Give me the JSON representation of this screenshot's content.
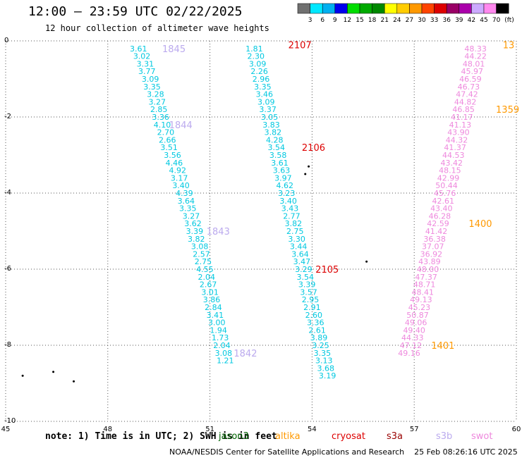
{
  "title": "12:00 — 23:59 UTC 02/22/2025",
  "subtitle": "12 hour collection of altimeter wave heights",
  "note": "note: 1) Time is in UTC; 2) SWH is in feet",
  "credit": "NOAA/NESDIS Center for Satellite Applications and Research    25 Feb 08:26:16 UTC 2025",
  "legend": [
    {
      "label": "jason3",
      "color": "#006400"
    },
    {
      "label": "altika",
      "color": "#ff9900"
    },
    {
      "label": "cryosat",
      "color": "#dd0000"
    },
    {
      "label": "s3a",
      "color": "#990000"
    },
    {
      "label": "s3b",
      "color": "#bbaaee"
    },
    {
      "label": "swot",
      "color": "#ee88dd"
    }
  ],
  "colorbar": {
    "unit": "(ft)",
    "labels": [
      "3",
      "6",
      "9",
      "12",
      "15",
      "18",
      "21",
      "24",
      "27",
      "30",
      "33",
      "36",
      "39",
      "42",
      "45",
      "70"
    ],
    "colors": [
      "#707070",
      "#00e8ff",
      "#00b0f0",
      "#0000ee",
      "#00dd00",
      "#00aa00",
      "#008800",
      "#ffff00",
      "#ffcc00",
      "#ff9900",
      "#ff4400",
      "#dd0000",
      "#990066",
      "#aa00aa",
      "#ccaaff",
      "#ff88ee",
      "#000000"
    ]
  },
  "chart_data": {
    "type": "scatter",
    "xlim": [
      45,
      60
    ],
    "ylim": [
      -10,
      0
    ],
    "x_ticks": [
      45,
      48,
      51,
      54,
      57,
      60
    ],
    "y_ticks": [
      0,
      -2,
      -4,
      -6,
      -8,
      -10
    ],
    "grid": true,
    "series": [
      {
        "name": "",
        "color": "#00c8e0",
        "points": [
          [
            48.9,
            -0.2,
            "3.61"
          ],
          [
            49.0,
            -0.4,
            "3.02"
          ],
          [
            49.1,
            -0.6,
            "3.31"
          ],
          [
            49.15,
            -0.8,
            "3.77"
          ],
          [
            49.25,
            -1.0,
            "3.09"
          ],
          [
            49.3,
            -1.2,
            "3.35"
          ],
          [
            49.4,
            -1.4,
            "3.28"
          ],
          [
            49.45,
            -1.6,
            "3.27"
          ],
          [
            49.5,
            -1.8,
            "2.85"
          ],
          [
            49.55,
            -2.0,
            "3.36"
          ],
          [
            49.6,
            -2.2,
            "4.10"
          ],
          [
            49.7,
            -2.4,
            "2.70"
          ],
          [
            49.75,
            -2.6,
            "2.66"
          ],
          [
            49.8,
            -2.8,
            "3.51"
          ],
          [
            49.9,
            -3.0,
            "3.56"
          ],
          [
            49.95,
            -3.2,
            "4.46"
          ],
          [
            50.05,
            -3.4,
            "4.92"
          ],
          [
            50.1,
            -3.6,
            "3.17"
          ],
          [
            50.15,
            -3.8,
            "3.40"
          ],
          [
            50.25,
            -4.0,
            "4.39"
          ],
          [
            50.3,
            -4.2,
            "3.64"
          ],
          [
            50.35,
            -4.4,
            "3.35"
          ],
          [
            50.45,
            -4.6,
            "3.27"
          ],
          [
            50.5,
            -4.8,
            "3.62"
          ],
          [
            50.55,
            -5.0,
            "3.39"
          ],
          [
            50.6,
            -5.2,
            "3.82"
          ],
          [
            50.7,
            -5.4,
            "3.08"
          ],
          [
            50.75,
            -5.6,
            "2.57"
          ],
          [
            50.8,
            -5.8,
            "2.75"
          ],
          [
            50.85,
            -6.0,
            "4.55"
          ],
          [
            50.9,
            -6.2,
            "2.04"
          ],
          [
            50.95,
            -6.4,
            "2.67"
          ],
          [
            51.0,
            -6.6,
            "3.01"
          ],
          [
            51.05,
            -6.8,
            "3.86"
          ],
          [
            51.1,
            -7.0,
            "2.84"
          ],
          [
            51.15,
            -7.2,
            "3.41"
          ],
          [
            51.2,
            -7.4,
            "3.00"
          ],
          [
            51.25,
            -7.6,
            "1.94"
          ],
          [
            51.3,
            -7.8,
            "1.73"
          ],
          [
            51.35,
            -8.0,
            "2.04"
          ],
          [
            51.4,
            -8.2,
            "3.08"
          ],
          [
            51.45,
            -8.4,
            "1.21"
          ]
        ]
      },
      {
        "name": "",
        "color": "#00c8e0",
        "points": [
          [
            52.3,
            -0.2,
            "1.81"
          ],
          [
            52.35,
            -0.4,
            "2.30"
          ],
          [
            52.4,
            -0.6,
            "3.09"
          ],
          [
            52.45,
            -0.8,
            "2.26"
          ],
          [
            52.5,
            -1.0,
            "2.96"
          ],
          [
            52.55,
            -1.2,
            "3.35"
          ],
          [
            52.6,
            -1.4,
            "3.46"
          ],
          [
            52.65,
            -1.6,
            "3.09"
          ],
          [
            52.7,
            -1.8,
            "3.37"
          ],
          [
            52.75,
            -2.0,
            "3.05"
          ],
          [
            52.8,
            -2.2,
            "3.83"
          ],
          [
            52.85,
            -2.4,
            "3.82"
          ],
          [
            52.9,
            -2.6,
            "4.28"
          ],
          [
            52.95,
            -2.8,
            "3.54"
          ],
          [
            53.0,
            -3.0,
            "3.58"
          ],
          [
            53.05,
            -3.2,
            "3.61"
          ],
          [
            53.1,
            -3.4,
            "3.63"
          ],
          [
            53.15,
            -3.6,
            "3.97"
          ],
          [
            53.2,
            -3.8,
            "4.62"
          ],
          [
            53.25,
            -4.0,
            "3.23"
          ],
          [
            53.3,
            -4.2,
            "3.40"
          ],
          [
            53.35,
            -4.4,
            "3.43"
          ],
          [
            53.4,
            -4.6,
            "2.77"
          ],
          [
            53.45,
            -4.8,
            "3.82"
          ],
          [
            53.5,
            -5.0,
            "2.75"
          ],
          [
            53.55,
            -5.2,
            "3.30"
          ],
          [
            53.6,
            -5.4,
            "3.44"
          ],
          [
            53.65,
            -5.6,
            "3.64"
          ],
          [
            53.7,
            -5.8,
            "3.47"
          ],
          [
            53.75,
            -6.0,
            "3.29"
          ],
          [
            53.8,
            -6.2,
            "3.54"
          ],
          [
            53.85,
            -6.4,
            "3.39"
          ],
          [
            53.9,
            -6.6,
            "3.57"
          ],
          [
            53.95,
            -6.8,
            "2.95"
          ],
          [
            54.0,
            -7.0,
            "2.91"
          ],
          [
            54.05,
            -7.2,
            "2.60"
          ],
          [
            54.1,
            -7.4,
            "3.36"
          ],
          [
            54.15,
            -7.6,
            "2.61"
          ],
          [
            54.2,
            -7.8,
            "3.89"
          ],
          [
            54.25,
            -8.0,
            "3.25"
          ],
          [
            54.3,
            -8.2,
            "3.35"
          ],
          [
            54.35,
            -8.4,
            "3.13"
          ],
          [
            54.4,
            -8.6,
            "3.68"
          ],
          [
            54.45,
            -8.8,
            "3.19"
          ]
        ]
      },
      {
        "name": "",
        "color": "#ee88dd",
        "points": [
          [
            58.8,
            -0.2,
            "48.33"
          ],
          [
            58.8,
            -0.4,
            "44.22"
          ],
          [
            58.75,
            -0.6,
            "48.01"
          ],
          [
            58.7,
            -0.8,
            "45.97"
          ],
          [
            58.65,
            -1.0,
            "46.59"
          ],
          [
            58.6,
            -1.2,
            "46.73"
          ],
          [
            58.55,
            -1.4,
            "47.42"
          ],
          [
            58.5,
            -1.6,
            "44.82"
          ],
          [
            58.45,
            -1.8,
            "46.85"
          ],
          [
            58.4,
            -2.0,
            "41.17"
          ],
          [
            58.35,
            -2.2,
            "41.13"
          ],
          [
            58.3,
            -2.4,
            "43.90"
          ],
          [
            58.25,
            -2.6,
            "44.32"
          ],
          [
            58.2,
            -2.8,
            "41.37"
          ],
          [
            58.15,
            -3.0,
            "44.53"
          ],
          [
            58.1,
            -3.2,
            "43.42"
          ],
          [
            58.05,
            -3.4,
            "48.15"
          ],
          [
            58.0,
            -3.6,
            "42.99"
          ],
          [
            57.95,
            -3.8,
            "50.44"
          ],
          [
            57.9,
            -4.0,
            "45.76"
          ],
          [
            57.85,
            -4.2,
            "42.61"
          ],
          [
            57.8,
            -4.4,
            "43.40"
          ],
          [
            57.75,
            -4.6,
            "46.28"
          ],
          [
            57.7,
            -4.8,
            "42.59"
          ],
          [
            57.65,
            -5.0,
            "41.42"
          ],
          [
            57.6,
            -5.2,
            "36.38"
          ],
          [
            57.55,
            -5.4,
            "37.07"
          ],
          [
            57.5,
            -5.6,
            "36.92"
          ],
          [
            57.45,
            -5.8,
            "43.89"
          ],
          [
            57.4,
            -6.0,
            "48.00"
          ],
          [
            57.35,
            -6.2,
            "47.37"
          ],
          [
            57.3,
            -6.4,
            "48.71"
          ],
          [
            57.25,
            -6.6,
            "48.41"
          ],
          [
            57.2,
            -6.8,
            "49.13"
          ],
          [
            57.15,
            -7.0,
            "45.23"
          ],
          [
            57.1,
            -7.2,
            "50.87"
          ],
          [
            57.05,
            -7.4,
            "49.06"
          ],
          [
            57.0,
            -7.6,
            "49.40"
          ],
          [
            56.95,
            -7.8,
            "44.33"
          ],
          [
            56.9,
            -8.0,
            "47.12"
          ],
          [
            56.85,
            -8.2,
            "49.16"
          ]
        ]
      }
    ],
    "annotations": [
      {
        "x": 49.6,
        "y": -0.2,
        "text": "1845",
        "color": "#bbaaee"
      },
      {
        "x": 49.8,
        "y": -2.2,
        "text": "1844",
        "color": "#bbaaee"
      },
      {
        "x": 50.9,
        "y": -5.0,
        "text": "1843",
        "color": "#bbaaee"
      },
      {
        "x": 51.7,
        "y": -8.2,
        "text": "1842",
        "color": "#bbaaee"
      },
      {
        "x": 53.3,
        "y": -0.1,
        "text": "2107",
        "color": "#dd0000"
      },
      {
        "x": 53.7,
        "y": -2.8,
        "text": "2106",
        "color": "#dd0000"
      },
      {
        "x": 54.1,
        "y": -6.0,
        "text": "2105",
        "color": "#dd0000"
      },
      {
        "x": 59.6,
        "y": -0.1,
        "text": "13",
        "color": "#ff9900"
      },
      {
        "x": 59.4,
        "y": -1.8,
        "text": "1359",
        "color": "#ff9900"
      },
      {
        "x": 58.6,
        "y": -4.8,
        "text": "1400",
        "color": "#ff9900"
      },
      {
        "x": 57.5,
        "y": -8.0,
        "text": "1401",
        "color": "#ff9900"
      }
    ]
  }
}
